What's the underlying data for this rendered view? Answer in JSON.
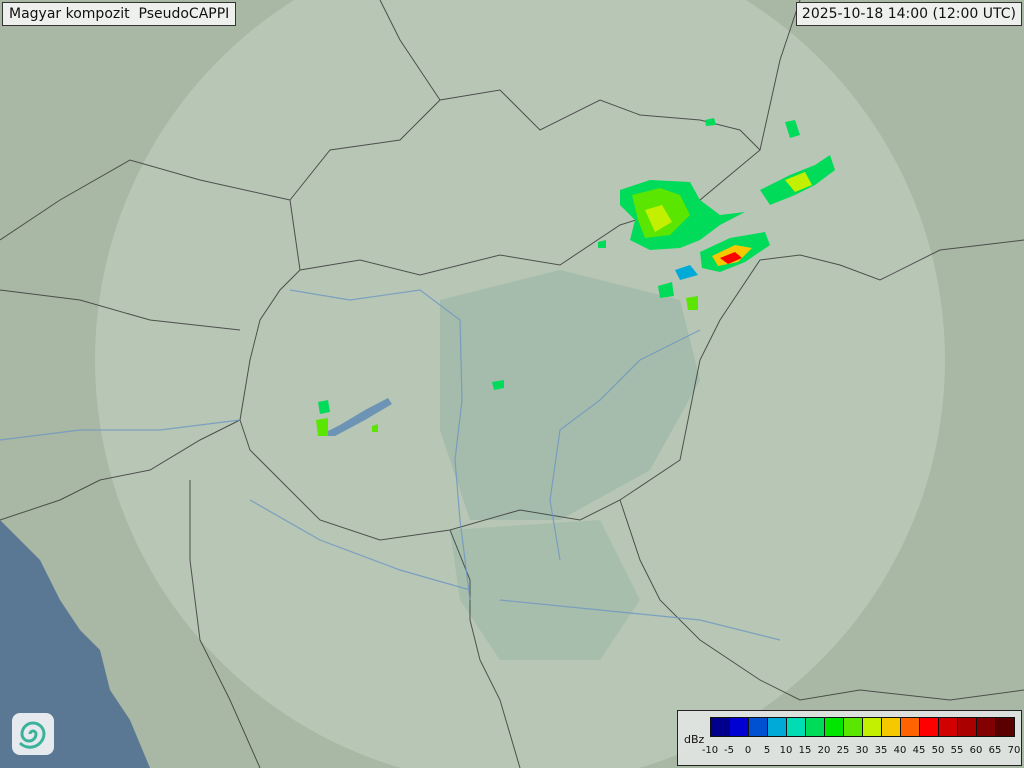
{
  "header": {
    "title": "Magyar kompozit  PseudoCAPPI",
    "timestamp": "2025-10-18 14:00 (12:00 UTC)"
  },
  "logo": {
    "icon": "spiral-logo-icon"
  },
  "legend": {
    "unit": "dBz",
    "ticks": [
      "-10",
      "-5",
      "0",
      "5",
      "10",
      "15",
      "20",
      "25",
      "30",
      "35",
      "40",
      "45",
      "50",
      "55",
      "60",
      "65",
      "70"
    ],
    "colors": [
      "#00008c",
      "#0000d2",
      "#0050d2",
      "#00aad8",
      "#00dcb4",
      "#00dc5a",
      "#00e600",
      "#5ae600",
      "#c3f000",
      "#f5c800",
      "#ff6400",
      "#ff0000",
      "#d20000",
      "#aa0000",
      "#820000",
      "#5a0000"
    ]
  },
  "map": {
    "background_color": "#a7b7a3",
    "coverage_color": "#c4d2c6",
    "sea_color": "#5a7894"
  }
}
